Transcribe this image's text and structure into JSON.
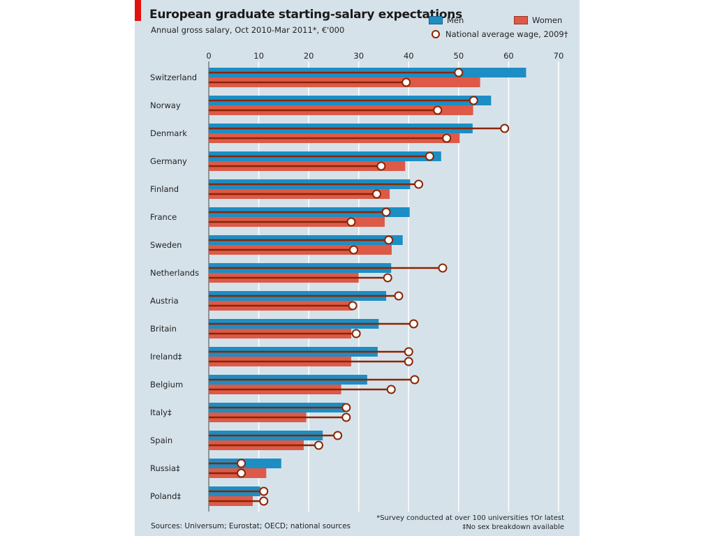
{
  "chart_data": {
    "type": "bar",
    "orientation": "horizontal",
    "title": "European graduate starting-salary expectations",
    "subtitle": "Annual gross salary, Oct 2010-Mar 2011*, €'000",
    "xlim": [
      0,
      70
    ],
    "xticks": [
      "0",
      "10",
      "20",
      "30",
      "40",
      "50",
      "60",
      "70"
    ],
    "xtick_values": [
      0,
      10,
      20,
      30,
      40,
      50,
      60,
      70
    ],
    "grid": true,
    "legend_position": "top-right",
    "categories": [
      "Switzerland",
      "Norway",
      "Denmark",
      "Germany",
      "Finland",
      "France",
      "Sweden",
      "Netherlands",
      "Austria",
      "Britain",
      "Ireland‡",
      "Belgium",
      "Italy‡",
      "Spain",
      "Russia‡",
      "Poland‡"
    ],
    "series": [
      {
        "name": "Men",
        "color": "#1d8ec4",
        "values": [
          63.5,
          56.5,
          52.8,
          46.5,
          40.3,
          40.2,
          38.8,
          36.5,
          35.5,
          34,
          33.8,
          31.7,
          27.2,
          22.8,
          14.5,
          10.3
        ]
      },
      {
        "name": "Women",
        "color": "#dd5a48",
        "values": [
          54.3,
          52.9,
          50.2,
          39.3,
          36.2,
          35.2,
          36.6,
          30,
          28.8,
          28.5,
          28.5,
          26.5,
          19.5,
          19,
          11.5,
          8.8
        ]
      },
      {
        "name": "National average wage, 2009†",
        "color": "#8b2500",
        "marker": "circle",
        "men_values": [
          50,
          53,
          59.2,
          44.2,
          42,
          35.5,
          36,
          46.8,
          38,
          41,
          40,
          41.2,
          27.5,
          25.8,
          6.5,
          11
        ],
        "women_values": [
          39.5,
          45.8,
          47.6,
          34.5,
          33.6,
          28.5,
          29,
          35.8,
          28.8,
          29.5,
          40,
          36.5,
          27.5,
          22,
          6.5,
          11
        ]
      }
    ]
  },
  "legend": {
    "men": "Men",
    "women": "Women",
    "wage": "National average wage, 2009†"
  },
  "footer": {
    "source": "Sources: Universum; Eurostat; OECD; national sources",
    "note1": "*Survey conducted at over 100 universities   †Or latest",
    "note2": "‡No sex breakdown available"
  },
  "colors": {
    "panel": "#d6e2ea",
    "men": "#1d8ec4",
    "women": "#dd5a48",
    "wage_line": "#8b2500",
    "accent_red": "#e3120b"
  }
}
